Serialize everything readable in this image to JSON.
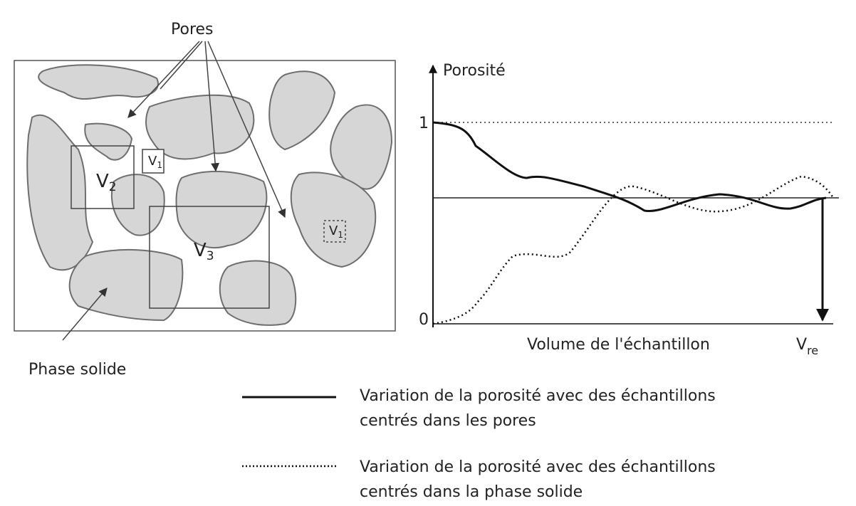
{
  "left_panel": {
    "pores_label": "Pores",
    "solid_label": "Phase solide",
    "volumes": [
      {
        "base": "V",
        "sub": "1"
      },
      {
        "base": "V",
        "sub": "2"
      },
      {
        "base": "V",
        "sub": "3"
      },
      {
        "base": "V",
        "sub": "1"
      }
    ]
  },
  "right_panel": {
    "y_axis_label": "Porosité",
    "tick_top": "1",
    "tick_bottom": "0",
    "x_axis_label": "Volume de l'échantillon",
    "v_re": {
      "base": "V",
      "sub": "re"
    }
  },
  "legend": [
    {
      "line1": "Variation de la porosité avec des échantillons",
      "line2": "centrés dans les pores"
    },
    {
      "line1": "Variation de la porosité avec des échantillons",
      "line2": "centrés dans la phase solide"
    }
  ]
}
